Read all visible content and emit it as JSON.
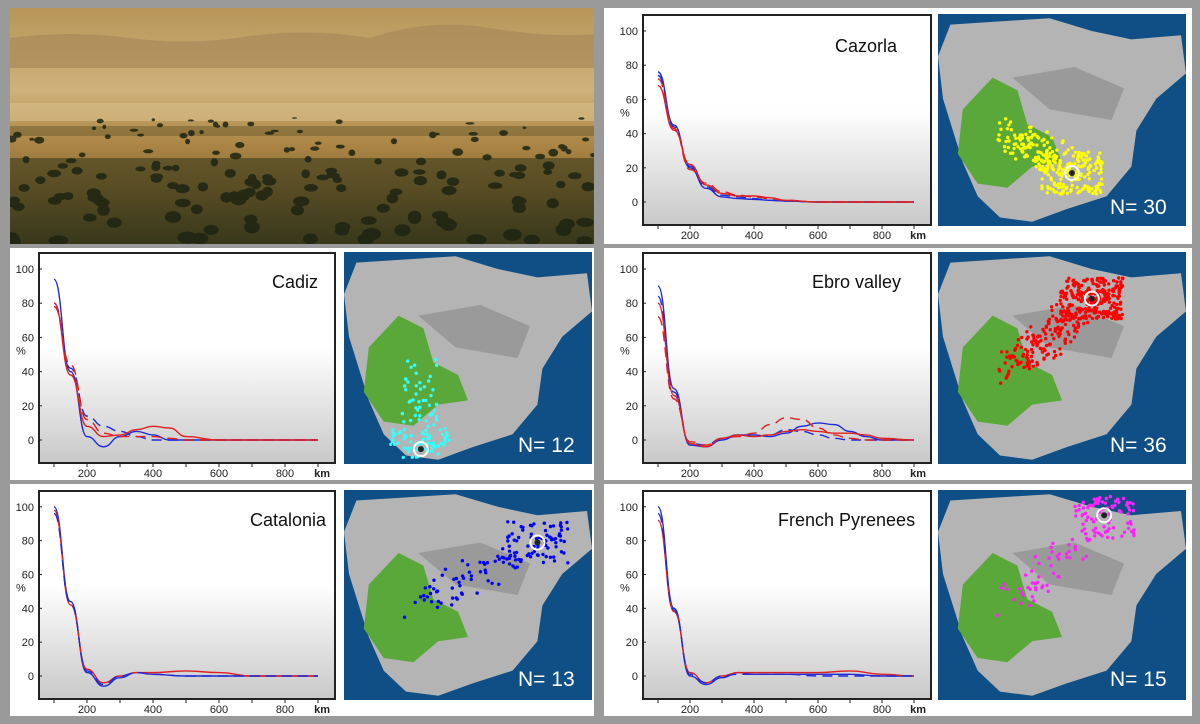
{
  "colors": {
    "series_red": "#e02020",
    "series_blue": "#1f2bd6",
    "sea": "#0f4f86",
    "land": "#b4b4b4",
    "range_green": "#5aa83a"
  },
  "photo": {
    "description_icon": "dehesa-landscape-photo"
  },
  "chart_data": [
    {
      "id": "cazorla",
      "type": "line",
      "title": "Cazorla",
      "n_label": "N= 30",
      "points_color": "#ffff00",
      "ylabel": "%",
      "xlabel": "km",
      "ylim": [
        0,
        100
      ],
      "xlim": [
        100,
        900
      ],
      "yticks": [
        "0",
        "20",
        "40",
        "60",
        "80",
        "100"
      ],
      "xticks": [
        "200",
        "400",
        "600",
        "800"
      ],
      "series": [
        {
          "color": "#1f2bd6",
          "dash": false,
          "x": [
            100,
            150,
            200,
            250,
            300,
            350,
            400,
            450,
            500,
            600,
            700,
            900
          ],
          "y": [
            76,
            45,
            20,
            8,
            3,
            2,
            1.5,
            1,
            0.5,
            0,
            0,
            0
          ]
        },
        {
          "color": "#1f2bd6",
          "dash": true,
          "x": [
            100,
            150,
            200,
            250,
            300,
            350,
            400,
            450,
            500,
            600,
            700,
            900
          ],
          "y": [
            74,
            44,
            21,
            9,
            4,
            3,
            2,
            1,
            0.5,
            0,
            0,
            0
          ]
        },
        {
          "color": "#e02020",
          "dash": false,
          "x": [
            100,
            150,
            200,
            250,
            300,
            350,
            400,
            450,
            500,
            600,
            700,
            900
          ],
          "y": [
            68,
            42,
            22,
            10,
            5,
            3.5,
            3.5,
            2.5,
            1,
            0,
            0,
            0
          ]
        },
        {
          "color": "#e02020",
          "dash": true,
          "x": [
            100,
            150,
            200,
            250,
            300,
            350,
            400,
            450,
            500,
            600,
            700,
            900
          ],
          "y": [
            72,
            43,
            19,
            11,
            6,
            4,
            3,
            2,
            1,
            0,
            0,
            0
          ]
        }
      ]
    },
    {
      "id": "cadiz",
      "type": "line",
      "title": "Cadiz",
      "n_label": "N= 12",
      "points_color": "#33ffff",
      "ylabel": "%",
      "xlabel": "km",
      "ylim": [
        0,
        100
      ],
      "xlim": [
        100,
        900
      ],
      "yticks": [
        "0",
        "20",
        "40",
        "60",
        "80",
        "100"
      ],
      "xticks": [
        "200",
        "400",
        "600",
        "800"
      ],
      "series": [
        {
          "color": "#1f2bd6",
          "dash": false,
          "x": [
            100,
            150,
            200,
            250,
            300,
            350,
            400,
            450,
            500,
            600,
            900
          ],
          "y": [
            94,
            40,
            2,
            -4,
            2,
            5,
            3,
            0,
            0,
            0,
            0
          ]
        },
        {
          "color": "#1f2bd6",
          "dash": true,
          "x": [
            100,
            150,
            200,
            250,
            300,
            350,
            400,
            450,
            500,
            600,
            900
          ],
          "y": [
            80,
            42,
            14,
            8,
            5,
            2,
            0,
            0,
            0,
            0,
            0
          ]
        },
        {
          "color": "#e02020",
          "dash": false,
          "x": [
            100,
            150,
            200,
            250,
            300,
            350,
            400,
            450,
            500,
            600,
            900
          ],
          "y": [
            80,
            38,
            8,
            2,
            3,
            6,
            8,
            7,
            2,
            0,
            0
          ]
        },
        {
          "color": "#e02020",
          "dash": true,
          "x": [
            100,
            150,
            200,
            250,
            300,
            350,
            400,
            450,
            500,
            600,
            900
          ],
          "y": [
            78,
            44,
            12,
            4,
            2,
            2,
            2,
            1,
            0,
            0,
            0
          ]
        }
      ]
    },
    {
      "id": "ebro",
      "type": "line",
      "title": "Ebro valley",
      "n_label": "N= 36",
      "points_color": "#ff0000",
      "ylabel": "%",
      "xlabel": "km",
      "ylim": [
        0,
        100
      ],
      "xlim": [
        100,
        900
      ],
      "yticks": [
        "0",
        "20",
        "40",
        "60",
        "80",
        "100"
      ],
      "xticks": [
        "200",
        "400",
        "600",
        "800"
      ],
      "series": [
        {
          "color": "#1f2bd6",
          "dash": false,
          "x": [
            100,
            150,
            200,
            250,
            300,
            350,
            400,
            450,
            500,
            550,
            600,
            650,
            700,
            750,
            800,
            900
          ],
          "y": [
            90,
            30,
            -3,
            -4,
            0,
            3,
            3,
            2,
            4,
            8,
            10,
            9,
            5,
            2,
            0,
            0
          ]
        },
        {
          "color": "#1f2bd6",
          "dash": true,
          "x": [
            100,
            150,
            200,
            250,
            300,
            350,
            400,
            450,
            500,
            550,
            600,
            650,
            700,
            750,
            800,
            900
          ],
          "y": [
            84,
            28,
            -2,
            -3,
            1,
            3,
            2,
            3,
            6,
            5,
            3,
            1,
            0,
            0,
            0,
            0
          ]
        },
        {
          "color": "#e02020",
          "dash": false,
          "x": [
            100,
            150,
            200,
            250,
            300,
            350,
            400,
            450,
            500,
            550,
            600,
            650,
            700,
            750,
            800,
            900
          ],
          "y": [
            80,
            26,
            -2,
            -4,
            1,
            3,
            2,
            3,
            5,
            6,
            5,
            4,
            4,
            3,
            1,
            0
          ]
        },
        {
          "color": "#e02020",
          "dash": true,
          "x": [
            100,
            150,
            200,
            250,
            300,
            350,
            400,
            450,
            500,
            550,
            600,
            650,
            700,
            750,
            800,
            900
          ],
          "y": [
            72,
            24,
            -1,
            -3,
            1,
            2,
            4,
            9,
            13,
            12,
            7,
            3,
            1,
            0,
            0,
            0
          ]
        }
      ]
    },
    {
      "id": "catalonia",
      "type": "line",
      "title": "Catalonia",
      "n_label": "N= 13",
      "points_color": "#0000ff",
      "ylabel": "%",
      "xlabel": "km",
      "ylim": [
        0,
        100
      ],
      "xlim": [
        100,
        900
      ],
      "yticks": [
        "0",
        "20",
        "40",
        "60",
        "80",
        "100"
      ],
      "xticks": [
        "200",
        "400",
        "600",
        "800"
      ],
      "series": [
        {
          "color": "#1f2bd6",
          "dash": false,
          "x": [
            100,
            150,
            200,
            250,
            300,
            350,
            400,
            500,
            600,
            700,
            900
          ],
          "y": [
            100,
            44,
            2,
            -6,
            -1,
            2,
            1,
            0,
            0,
            0,
            0
          ]
        },
        {
          "color": "#e02020",
          "dash": false,
          "x": [
            100,
            150,
            200,
            250,
            300,
            350,
            400,
            500,
            600,
            700,
            900
          ],
          "y": [
            98,
            42,
            4,
            -4,
            0,
            2,
            2,
            3,
            2,
            0,
            0
          ]
        },
        {
          "color": "#1f2bd6",
          "dash": true,
          "x": [
            100,
            150,
            200,
            250,
            300,
            350,
            400,
            500,
            600,
            700,
            900
          ],
          "y": [
            96,
            43,
            3,
            -5,
            0,
            2,
            1,
            0,
            0,
            0,
            0
          ]
        }
      ]
    },
    {
      "id": "pyrenees",
      "type": "line",
      "title": "French Pyrenees",
      "n_label": "N= 15",
      "points_color": "#ff22ff",
      "ylabel": "%",
      "xlabel": "km",
      "ylim": [
        0,
        100
      ],
      "xlim": [
        100,
        900
      ],
      "yticks": [
        "0",
        "20",
        "40",
        "60",
        "80",
        "100"
      ],
      "xticks": [
        "200",
        "400",
        "600",
        "800"
      ],
      "series": [
        {
          "color": "#1f2bd6",
          "dash": false,
          "x": [
            100,
            150,
            200,
            250,
            300,
            350,
            400,
            500,
            600,
            700,
            800,
            900
          ],
          "y": [
            100,
            40,
            0,
            -5,
            -1,
            2,
            1,
            1,
            1,
            1,
            0,
            0
          ]
        },
        {
          "color": "#e02020",
          "dash": false,
          "x": [
            100,
            150,
            200,
            250,
            300,
            350,
            400,
            500,
            600,
            700,
            800,
            900
          ],
          "y": [
            92,
            38,
            2,
            -4,
            0,
            2,
            2,
            2,
            2,
            3,
            1,
            0
          ]
        },
        {
          "color": "#1f2bd6",
          "dash": true,
          "x": [
            100,
            150,
            200,
            250,
            300,
            350,
            400,
            500,
            600,
            700,
            800,
            900
          ],
          "y": [
            96,
            39,
            1,
            -4,
            0,
            1,
            1,
            1,
            0,
            0,
            0,
            0
          ]
        }
      ]
    }
  ]
}
